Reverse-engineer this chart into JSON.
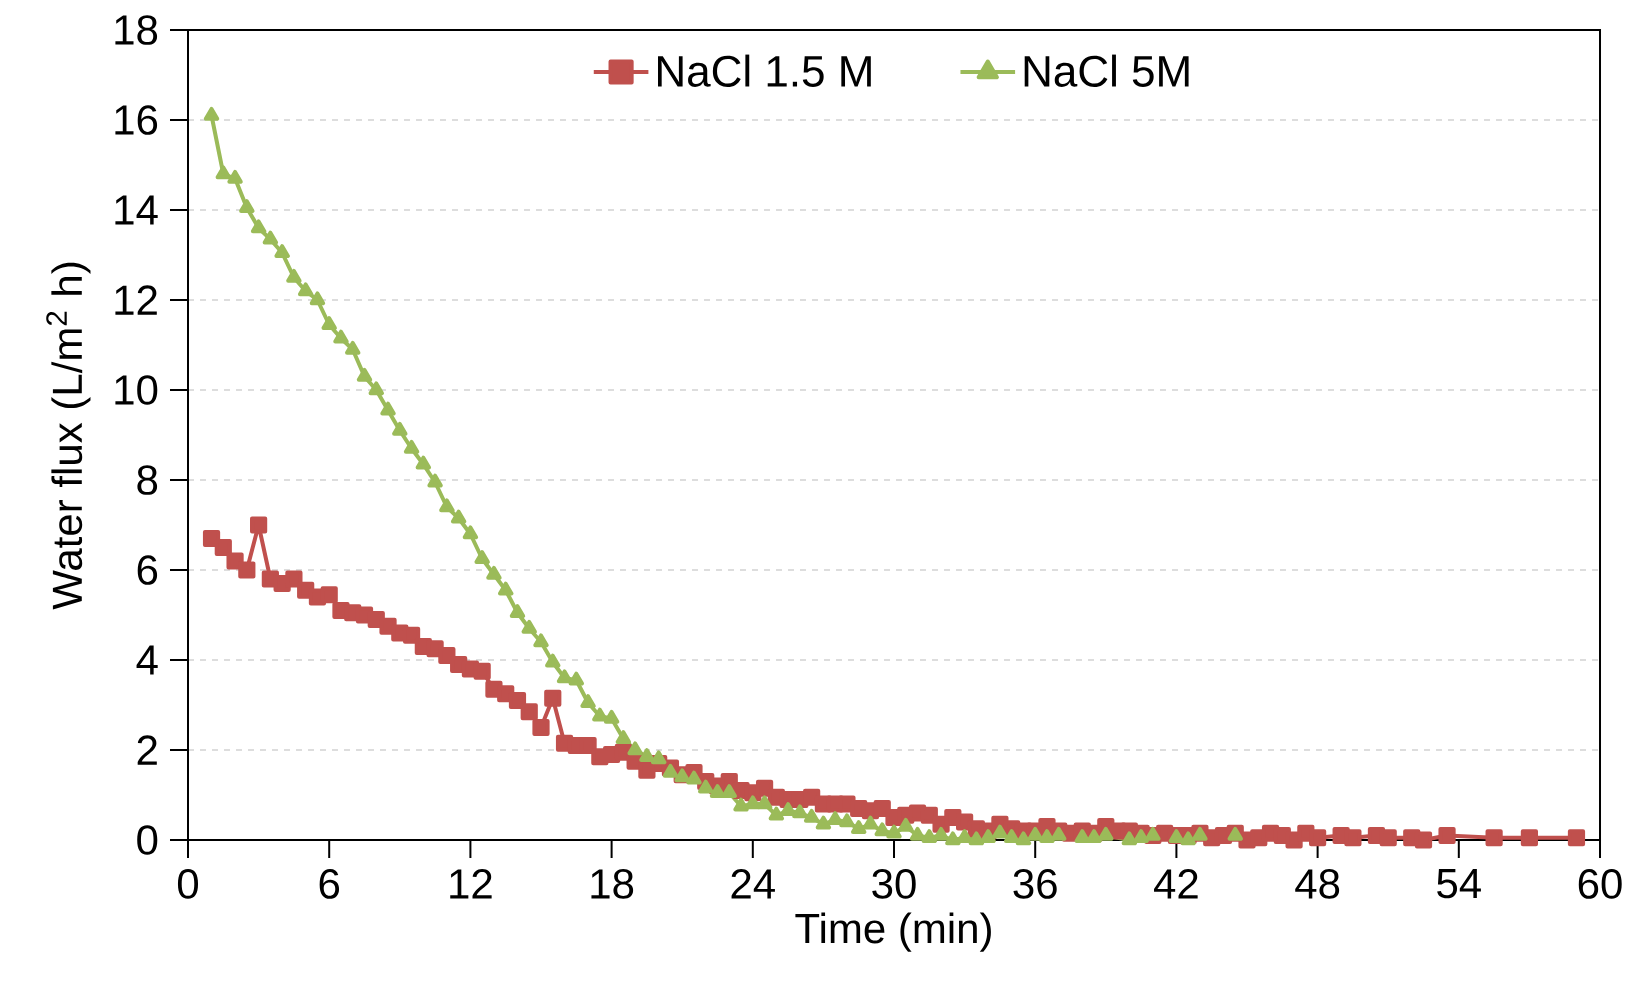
{
  "chart_data": {
    "type": "line",
    "xlabel": "Time (min)",
    "ylabel": "Water flux (L/m$^{2}$ h)",
    "xlim": [
      0,
      60
    ],
    "xticks": [
      0,
      6,
      12,
      18,
      24,
      30,
      36,
      42,
      48,
      54,
      60
    ],
    "ylim": [
      0,
      18
    ],
    "yticks": [
      0,
      2,
      4,
      6,
      8,
      10,
      12,
      14,
      16,
      18
    ],
    "grid": "y",
    "legend": "top",
    "line_style": "solid",
    "series": [
      {
        "name": "NaCl 1.5 M",
        "color": "#c0504d",
        "marker": "square",
        "x": [
          1,
          1.5,
          2,
          2.5,
          3,
          3.5,
          4,
          4.5,
          5,
          5.5,
          6,
          6.5,
          7,
          7.5,
          8,
          8.5,
          9,
          9.5,
          10,
          10.5,
          11,
          11.5,
          12,
          12.5,
          13,
          13.5,
          14,
          14.5,
          15,
          15.5,
          16,
          16.5,
          17,
          17.5,
          18,
          18.5,
          19,
          19.5,
          20,
          20.5,
          21,
          21.5,
          22,
          22.5,
          23,
          23.5,
          24,
          24.5,
          25,
          25.5,
          26,
          26.5,
          27,
          27.5,
          28,
          28.5,
          29,
          29.5,
          30,
          30.5,
          31,
          31.5,
          32,
          32.5,
          33,
          33.5,
          34,
          34.5,
          35,
          35.5,
          36,
          36.5,
          37,
          37.5,
          38,
          38.5,
          39,
          39.5,
          40,
          40.5,
          41,
          41.5,
          42,
          42.5,
          43,
          43.5,
          44,
          44.5,
          45,
          45.5,
          46,
          46.5,
          47,
          47.5,
          48,
          49,
          49.5,
          50.5,
          51,
          52,
          52.5,
          53.5,
          55.5,
          57,
          59
        ],
        "values": [
          6.7,
          6.5,
          6.2,
          6.0,
          7.0,
          5.8,
          5.7,
          5.8,
          5.55,
          5.4,
          5.45,
          5.1,
          5.05,
          5.0,
          4.9,
          4.75,
          4.6,
          4.55,
          4.3,
          4.25,
          4.1,
          3.9,
          3.8,
          3.75,
          3.35,
          3.25,
          3.1,
          2.85,
          2.5,
          3.15,
          2.15,
          2.1,
          2.1,
          1.85,
          1.9,
          1.95,
          1.75,
          1.55,
          1.7,
          1.6,
          1.45,
          1.5,
          1.3,
          1.2,
          1.3,
          1.1,
          1.05,
          1.15,
          0.95,
          0.9,
          0.9,
          0.95,
          0.8,
          0.8,
          0.8,
          0.7,
          0.65,
          0.7,
          0.5,
          0.55,
          0.6,
          0.55,
          0.35,
          0.5,
          0.4,
          0.25,
          0.2,
          0.35,
          0.25,
          0.2,
          0.2,
          0.3,
          0.2,
          0.15,
          0.2,
          0.15,
          0.3,
          0.2,
          0.2,
          0.15,
          0.1,
          0.15,
          0.1,
          0.1,
          0.15,
          0.05,
          0.1,
          0.15,
          0.0,
          0.05,
          0.15,
          0.1,
          0.0,
          0.15,
          0.05,
          0.1,
          0.05,
          0.1,
          0.05,
          0.05,
          0.0,
          0.1,
          0.05,
          0.05,
          0.05
        ]
      },
      {
        "name": "NaCl 5M",
        "color": "#9bbb59",
        "marker": "triangle",
        "x": [
          1,
          1.5,
          2,
          2.5,
          3,
          3.5,
          4,
          4.5,
          5,
          5.5,
          6,
          6.5,
          7,
          7.5,
          8,
          8.5,
          9,
          9.5,
          10,
          10.5,
          11,
          11.5,
          12,
          12.5,
          13,
          13.5,
          14,
          14.5,
          15,
          15.5,
          16,
          16.5,
          17,
          17.5,
          18,
          18.5,
          19,
          19.5,
          20,
          20.5,
          21,
          21.5,
          22,
          22.5,
          23,
          23.5,
          24,
          24.5,
          25,
          25.5,
          26,
          26.5,
          27,
          27.5,
          28,
          28.5,
          29,
          29.5,
          30,
          30.5,
          31,
          31.5,
          32,
          32.5,
          33,
          33.5,
          34,
          34.5,
          35,
          35.5,
          36,
          36.5,
          37,
          38,
          38.5,
          39,
          40,
          40.5,
          41,
          42,
          42.5,
          43,
          44.5
        ],
        "values": [
          16.1,
          14.8,
          14.7,
          14.05,
          13.6,
          13.35,
          13.05,
          12.5,
          12.2,
          12.0,
          11.45,
          11.15,
          10.9,
          10.3,
          10.0,
          9.55,
          9.1,
          8.7,
          8.35,
          7.95,
          7.4,
          7.15,
          6.8,
          6.25,
          5.9,
          5.55,
          5.05,
          4.7,
          4.4,
          3.95,
          3.6,
          3.55,
          3.05,
          2.75,
          2.7,
          2.25,
          2.0,
          1.85,
          1.8,
          1.5,
          1.4,
          1.35,
          1.15,
          1.05,
          1.05,
          0.75,
          0.8,
          0.8,
          0.55,
          0.65,
          0.6,
          0.5,
          0.35,
          0.45,
          0.4,
          0.25,
          0.35,
          0.2,
          0.15,
          0.3,
          0.1,
          0.05,
          0.1,
          0.0,
          0.05,
          0.0,
          0.05,
          0.15,
          0.05,
          0.0,
          0.1,
          0.05,
          0.1,
          0.05,
          0.05,
          0.1,
          0.0,
          0.05,
          0.1,
          0.05,
          0.0,
          0.1,
          0.1
        ]
      }
    ]
  }
}
